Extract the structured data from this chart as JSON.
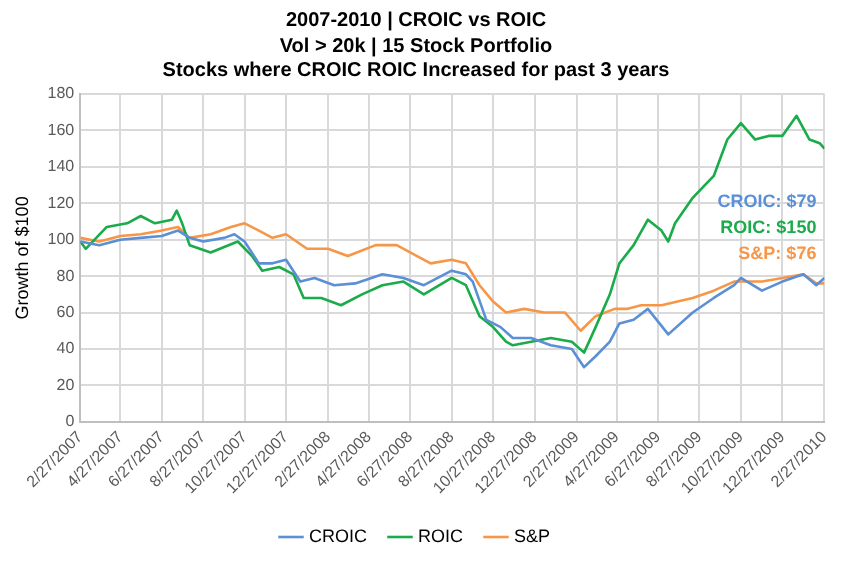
{
  "chart_data": {
    "type": "line",
    "title": "2007-2010 | CROIC vs ROIC",
    "subtitle": "Vol > 20k | 15 Stock Portfolio\nStocks where CROIC ROIC Increased for past 3 years",
    "ylabel": "Growth of $100",
    "xlim": [
      "2007-02-27",
      "2010-02-27"
    ],
    "xticks": [
      {
        "value": "2007-02-27",
        "label": "2/27/2007"
      },
      {
        "value": "2007-04-27",
        "label": "4/27/2007"
      },
      {
        "value": "2007-06-27",
        "label": "6/27/2007"
      },
      {
        "value": "2007-08-27",
        "label": "8/27/2007"
      },
      {
        "value": "2007-10-27",
        "label": "10/27/2007"
      },
      {
        "value": "2007-12-27",
        "label": "12/27/2007"
      },
      {
        "value": "2008-02-27",
        "label": "2/27/2008"
      },
      {
        "value": "2008-04-27",
        "label": "4/27/2008"
      },
      {
        "value": "2008-06-27",
        "label": "6/27/2008"
      },
      {
        "value": "2008-08-27",
        "label": "8/27/2008"
      },
      {
        "value": "2008-10-27",
        "label": "10/27/2008"
      },
      {
        "value": "2008-12-27",
        "label": "12/27/2008"
      },
      {
        "value": "2009-02-27",
        "label": "2/27/2009"
      },
      {
        "value": "2009-04-27",
        "label": "4/27/2009"
      },
      {
        "value": "2009-06-27",
        "label": "6/27/2009"
      },
      {
        "value": "2009-08-27",
        "label": "8/27/2009"
      },
      {
        "value": "2009-10-27",
        "label": "10/27/2009"
      },
      {
        "value": "2009-12-27",
        "label": "12/27/2009"
      },
      {
        "value": "2010-02-27",
        "label": "2/27/2010"
      }
    ],
    "ylim": [
      0,
      180
    ],
    "yticks": [
      0,
      20,
      40,
      60,
      80,
      100,
      120,
      140,
      160,
      180
    ],
    "grid": true,
    "legend": "bottom",
    "marker": "none",
    "line_style": "solid",
    "annotations": [
      "CROIC: $79",
      "ROIC: $150",
      "S&P: $76"
    ],
    "series": [
      {
        "name": "CROIC",
        "color": "#5b8fd6",
        "x": [
          "2007-02-27",
          "2007-03-27",
          "2007-04-27",
          "2007-05-27",
          "2007-06-27",
          "2007-07-21",
          "2007-08-07",
          "2007-08-27",
          "2007-09-27",
          "2007-10-12",
          "2007-10-27",
          "2007-11-17",
          "2007-12-07",
          "2007-12-27",
          "2008-01-17",
          "2008-02-07",
          "2008-03-07",
          "2008-04-07",
          "2008-05-17",
          "2008-06-17",
          "2008-07-17",
          "2008-08-27",
          "2008-09-17",
          "2008-09-27",
          "2008-10-17",
          "2008-11-07",
          "2008-11-25",
          "2008-12-22",
          "2009-01-20",
          "2009-02-20",
          "2009-03-10",
          "2009-03-27",
          "2009-04-17",
          "2009-05-01",
          "2009-05-22",
          "2009-06-12",
          "2009-07-12",
          "2009-08-17",
          "2009-09-17",
          "2009-10-17",
          "2009-10-27",
          "2009-11-27",
          "2009-12-27",
          "2010-01-27",
          "2010-02-15",
          "2010-02-27"
        ],
        "values": [
          99,
          97,
          100,
          101,
          102,
          105,
          101,
          99,
          101,
          103,
          99,
          87,
          87,
          89,
          77,
          79,
          75,
          76,
          81,
          79,
          75,
          83,
          81,
          77,
          56,
          52,
          46,
          46,
          42,
          40,
          30,
          36,
          44,
          54,
          56,
          62,
          48,
          60,
          68,
          75,
          79,
          72,
          77,
          81,
          75,
          79
        ]
      },
      {
        "name": "ROIC",
        "color": "#1aab4a",
        "x": [
          "2007-02-27",
          "2007-03-07",
          "2007-04-07",
          "2007-05-07",
          "2007-05-27",
          "2007-06-17",
          "2007-07-12",
          "2007-07-19",
          "2007-07-27",
          "2007-08-07",
          "2007-09-07",
          "2007-09-27",
          "2007-10-17",
          "2007-11-07",
          "2007-11-22",
          "2007-12-17",
          "2008-01-07",
          "2008-01-22",
          "2008-02-17",
          "2008-03-17",
          "2008-04-17",
          "2008-05-17",
          "2008-06-17",
          "2008-07-17",
          "2008-08-27",
          "2008-09-17",
          "2008-10-07",
          "2008-10-27",
          "2008-11-15",
          "2008-11-25",
          "2008-12-22",
          "2009-01-20",
          "2009-02-20",
          "2009-03-10",
          "2009-03-27",
          "2009-04-17",
          "2009-05-01",
          "2009-05-22",
          "2009-06-12",
          "2009-07-02",
          "2009-07-12",
          "2009-07-22",
          "2009-08-17",
          "2009-09-17",
          "2009-10-07",
          "2009-10-27",
          "2009-11-17",
          "2009-12-07",
          "2009-12-27",
          "2010-01-17",
          "2010-02-05",
          "2010-02-20",
          "2010-02-27"
        ],
        "values": [
          99,
          95,
          107,
          109,
          113,
          109,
          111,
          116,
          109,
          97,
          93,
          96,
          99,
          91,
          83,
          85,
          81,
          68,
          68,
          64,
          70,
          75,
          77,
          70,
          79,
          75,
          58,
          52,
          44,
          42,
          44,
          46,
          44,
          38,
          52,
          70,
          87,
          97,
          111,
          105,
          99,
          109,
          123,
          135,
          155,
          164,
          155,
          157,
          157,
          168,
          155,
          153,
          150
        ]
      },
      {
        "name": "S&P",
        "color": "#f79646",
        "x": [
          "2007-02-27",
          "2007-03-27",
          "2007-04-27",
          "2007-05-27",
          "2007-06-27",
          "2007-07-21",
          "2007-08-07",
          "2007-09-07",
          "2007-10-07",
          "2007-10-27",
          "2007-11-17",
          "2007-12-07",
          "2007-12-27",
          "2008-01-27",
          "2008-02-27",
          "2008-03-27",
          "2008-05-07",
          "2008-06-07",
          "2008-07-07",
          "2008-07-27",
          "2008-08-27",
          "2008-09-17",
          "2008-10-07",
          "2008-10-27",
          "2008-11-15",
          "2008-12-12",
          "2009-01-10",
          "2009-02-10",
          "2009-03-05",
          "2009-03-27",
          "2009-04-24",
          "2009-05-12",
          "2009-06-02",
          "2009-07-02",
          "2009-08-17",
          "2009-09-17",
          "2009-10-17",
          "2009-11-27",
          "2009-12-27",
          "2010-01-27",
          "2010-02-15",
          "2010-02-27"
        ],
        "values": [
          101,
          99,
          102,
          103,
          105,
          107,
          101,
          103,
          107,
          109,
          105,
          101,
          103,
          95,
          95,
          91,
          97,
          97,
          91,
          87,
          89,
          87,
          75,
          66,
          60,
          62,
          60,
          60,
          50,
          58,
          62,
          62,
          64,
          64,
          68,
          72,
          77,
          77,
          79,
          81,
          76,
          76
        ]
      }
    ]
  }
}
